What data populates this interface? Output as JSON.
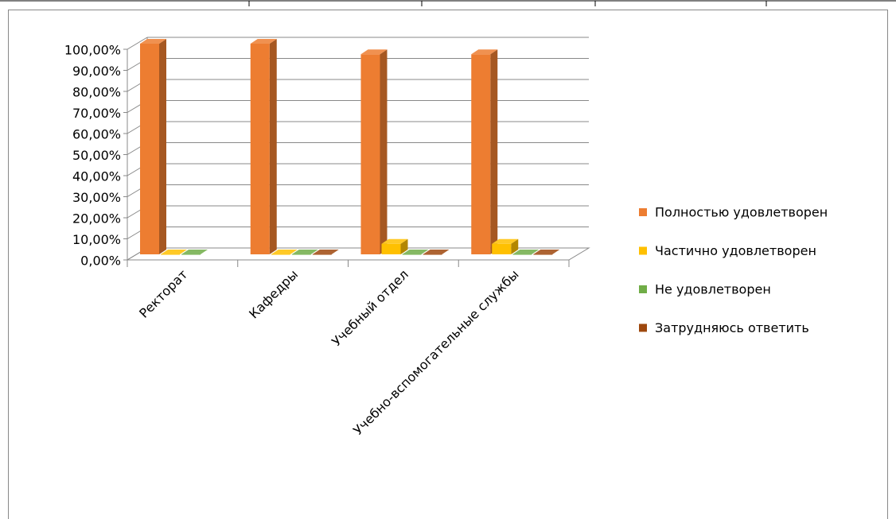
{
  "chart_data": {
    "type": "bar3d",
    "categories": [
      "Ректорат",
      "Кафедры",
      "Учебный отдел",
      "Учебно-вспомогательные службы"
    ],
    "series": [
      {
        "name": "Полностью удовлетворен",
        "color": "#ED7D31",
        "values": [
          100,
          100,
          95,
          95
        ]
      },
      {
        "name": "Частично удовлетворен",
        "color": "#FFC000",
        "values": [
          0,
          0,
          5,
          5
        ]
      },
      {
        "name": "Не удовлетворен",
        "color": "#70AD47",
        "values": [
          0,
          0,
          0,
          0
        ]
      },
      {
        "name": "Затрудняюсь ответить",
        "color": "#9E480E",
        "values": [
          null,
          0,
          0,
          0
        ]
      }
    ],
    "ylim": [
      0,
      100
    ],
    "yticks": [
      {
        "value": 0,
        "label": "0,00%"
      },
      {
        "value": 10,
        "label": "10,00%"
      },
      {
        "value": 20,
        "label": "20,00%"
      },
      {
        "value": 30,
        "label": "30,00%"
      },
      {
        "value": 40,
        "label": "40,00%"
      },
      {
        "value": 50,
        "label": "50,00%"
      },
      {
        "value": 60,
        "label": "60,00%"
      },
      {
        "value": 70,
        "label": "70,00%"
      },
      {
        "value": 80,
        "label": "80,00%"
      },
      {
        "value": 90,
        "label": "90,00%"
      },
      {
        "value": 100,
        "label": "100,00%"
      }
    ],
    "grid": true,
    "legend": "right"
  }
}
